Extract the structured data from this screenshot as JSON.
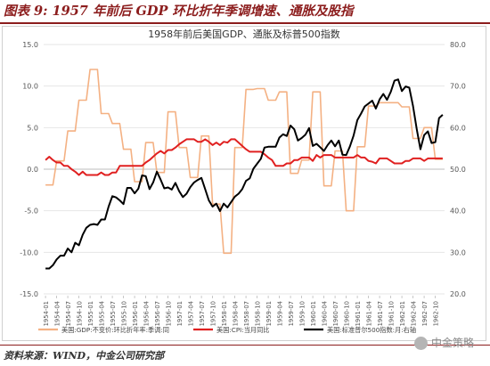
{
  "figure": {
    "title": "图表 9: 1957 年前后 GDP 环比折年季调增速、通胀及股指",
    "source": "资料来源：WIND，中金公司研究部",
    "watermark": "中金策略"
  },
  "chart_data": {
    "type": "line",
    "title": "1958年前后美国GDP、通胀及标普500指数",
    "x": [
      "1954-01",
      "1954-02",
      "1954-03",
      "1954-04",
      "1954-05",
      "1954-06",
      "1954-07",
      "1954-08",
      "1954-09",
      "1954-10",
      "1954-11",
      "1954-12",
      "1955-01",
      "1955-02",
      "1955-03",
      "1955-04",
      "1955-05",
      "1955-06",
      "1955-07",
      "1955-08",
      "1955-09",
      "1955-10",
      "1955-11",
      "1955-12",
      "1956-01",
      "1956-02",
      "1956-03",
      "1956-04",
      "1956-05",
      "1956-06",
      "1956-07",
      "1956-08",
      "1956-09",
      "1956-10",
      "1956-11",
      "1956-12",
      "1957-01",
      "1957-02",
      "1957-03",
      "1957-04",
      "1957-05",
      "1957-06",
      "1957-07",
      "1957-08",
      "1957-09",
      "1957-10",
      "1957-11",
      "1957-12",
      "1958-01",
      "1958-02",
      "1958-03",
      "1958-04",
      "1958-05",
      "1958-06",
      "1958-07",
      "1958-08",
      "1958-09",
      "1958-10",
      "1958-11",
      "1958-12",
      "1959-01",
      "1959-02",
      "1959-03",
      "1959-04",
      "1959-05",
      "1959-06",
      "1959-07",
      "1959-08",
      "1959-09",
      "1959-10",
      "1959-11",
      "1959-12",
      "1960-01",
      "1960-02",
      "1960-03",
      "1960-04",
      "1960-05",
      "1960-06",
      "1960-07",
      "1960-08",
      "1960-09",
      "1960-10",
      "1960-11",
      "1960-12",
      "1961-01",
      "1961-02",
      "1961-03",
      "1961-04",
      "1961-05",
      "1961-06",
      "1961-07",
      "1961-08",
      "1961-09",
      "1961-10",
      "1961-11",
      "1961-12",
      "1962-01",
      "1962-02",
      "1962-03",
      "1962-04",
      "1962-05",
      "1962-06",
      "1962-07",
      "1962-08",
      "1962-09",
      "1962-10",
      "1962-11",
      "1962-12"
    ],
    "tick_labels": [
      "1954-01",
      "1954-04",
      "1954-07",
      "1954-10",
      "1955-01",
      "1955-04",
      "1955-07",
      "1955-10",
      "1956-01",
      "1956-04",
      "1956-07",
      "1956-10",
      "1957-01",
      "1957-04",
      "1957-07",
      "1957-10",
      "1958-01",
      "1958-04",
      "1958-07",
      "1958-10",
      "1959-01",
      "1959-04",
      "1959-07",
      "1959-10",
      "1960-01",
      "1960-04",
      "1960-07",
      "1960-10",
      "1961-01",
      "1961-04",
      "1961-07",
      "1961-10",
      "1962-01",
      "1962-04",
      "1962-07",
      "1962-10"
    ],
    "y_left": {
      "lim": [
        -15,
        15
      ],
      "ticks": [
        "-15.0",
        "-10.0",
        "-5.0",
        "0.0",
        "5.0",
        "10.0",
        "15.0"
      ]
    },
    "y_right": {
      "lim": [
        20,
        80
      ],
      "ticks": [
        "20.0",
        "30.0",
        "40.0",
        "50.0",
        "60.0",
        "70.0",
        "80.0"
      ]
    },
    "grid": true,
    "legend_position": "bottom",
    "series": [
      {
        "name": "美国:GDP:不变价:环比折年率:季调:同",
        "axis": "left",
        "color": "#f4b183",
        "values": [
          -1.9,
          -1.9,
          -1.9,
          1.0,
          1.0,
          1.0,
          4.6,
          4.6,
          4.6,
          8.3,
          8.3,
          8.3,
          12.0,
          12.0,
          12.0,
          6.7,
          6.7,
          6.7,
          5.5,
          5.5,
          5.5,
          2.4,
          2.4,
          2.4,
          -1.5,
          -1.5,
          -1.5,
          3.2,
          3.2,
          3.2,
          -0.4,
          -0.4,
          -0.4,
          6.9,
          6.9,
          6.9,
          2.6,
          2.6,
          2.6,
          -1.0,
          -1.0,
          -1.0,
          4.0,
          4.0,
          4.0,
          -4.2,
          -4.2,
          -4.2,
          -10.1,
          -10.1,
          -10.1,
          2.6,
          2.6,
          2.6,
          9.6,
          9.6,
          9.6,
          9.7,
          9.7,
          9.7,
          8.3,
          8.3,
          8.3,
          9.3,
          9.3,
          9.3,
          -0.5,
          -0.5,
          -0.5,
          1.1,
          1.1,
          1.1,
          9.3,
          9.3,
          9.3,
          -2.0,
          -2.0,
          -2.0,
          2.2,
          2.2,
          2.2,
          -5.0,
          -5.0,
          -5.0,
          2.7,
          2.7,
          2.7,
          7.6,
          7.6,
          7.6,
          8.0,
          8.0,
          8.0,
          8.0,
          8.0,
          8.0,
          7.5,
          7.5,
          7.5,
          3.7,
          3.7,
          3.7,
          5.0,
          5.0,
          5.0,
          1.2,
          1.2,
          1.2
        ]
      },
      {
        "name": "美国:CPI:当月同比",
        "axis": "left",
        "color": "#e02020",
        "values": [
          1.1,
          1.5,
          1.1,
          0.8,
          0.8,
          0.4,
          0.4,
          0.0,
          -0.3,
          -0.7,
          -0.3,
          -0.7,
          -0.7,
          -0.7,
          -0.7,
          -0.4,
          -0.7,
          -0.7,
          -0.4,
          -0.4,
          0.4,
          0.4,
          0.4,
          0.4,
          0.4,
          0.4,
          0.4,
          0.8,
          1.1,
          1.5,
          1.9,
          2.2,
          1.9,
          2.3,
          2.3,
          2.6,
          3.0,
          3.3,
          3.6,
          3.6,
          3.6,
          3.3,
          3.3,
          3.6,
          3.3,
          2.9,
          3.2,
          2.9,
          3.3,
          3.2,
          3.6,
          3.6,
          3.2,
          2.8,
          2.4,
          2.1,
          2.1,
          2.1,
          2.1,
          1.8,
          1.4,
          1.1,
          0.4,
          0.4,
          0.4,
          0.7,
          0.7,
          1.1,
          1.1,
          1.4,
          1.4,
          1.4,
          1.0,
          1.7,
          1.4,
          1.7,
          1.7,
          1.7,
          1.4,
          1.4,
          1.4,
          1.4,
          1.4,
          1.4,
          1.7,
          1.4,
          1.4,
          1.0,
          0.9,
          0.7,
          1.3,
          1.3,
          1.3,
          1.0,
          0.7,
          0.7,
          0.7,
          1.0,
          1.0,
          1.3,
          1.3,
          1.3,
          1.0,
          1.3,
          1.3,
          1.3,
          1.3,
          1.3
        ]
      },
      {
        "name": "美国:标准普尔500指数:月:右轴",
        "axis": "right",
        "color": "#000000",
        "values": [
          26.1,
          26.1,
          26.9,
          28.3,
          29.2,
          29.2,
          30.9,
          30.0,
          32.3,
          31.7,
          34.2,
          35.9,
          36.6,
          36.8,
          36.6,
          37.9,
          37.9,
          41.0,
          43.5,
          43.2,
          42.5,
          41.6,
          45.5,
          45.5,
          44.2,
          45.3,
          48.5,
          48.3,
          45.2,
          46.8,
          49.4,
          47.5,
          45.4,
          45.6,
          45.1,
          46.7,
          44.7,
          43.3,
          44.1,
          45.7,
          46.8,
          47.4,
          47.9,
          45.2,
          42.5,
          41.0,
          41.7,
          39.9,
          41.7,
          40.8,
          42.1,
          43.4,
          44.1,
          45.2,
          47.2,
          47.8,
          50.1,
          51.3,
          52.5,
          55.2,
          55.4,
          55.4,
          55.4,
          57.6,
          58.4,
          58.0,
          60.5,
          59.6,
          56.9,
          57.5,
          58.3,
          59.9,
          55.6,
          56.1,
          55.3,
          54.4,
          55.8,
          56.9,
          55.5,
          56.9,
          53.5,
          53.4,
          55.5,
          58.1,
          61.8,
          63.4,
          65.1,
          65.8,
          66.5,
          64.6,
          66.8,
          68.1,
          66.7,
          68.6,
          71.3,
          71.6,
          68.8,
          69.9,
          69.6,
          65.2,
          59.6,
          54.8,
          58.2,
          59.1,
          56.3,
          56.5,
          62.3,
          63.1
        ]
      }
    ]
  }
}
